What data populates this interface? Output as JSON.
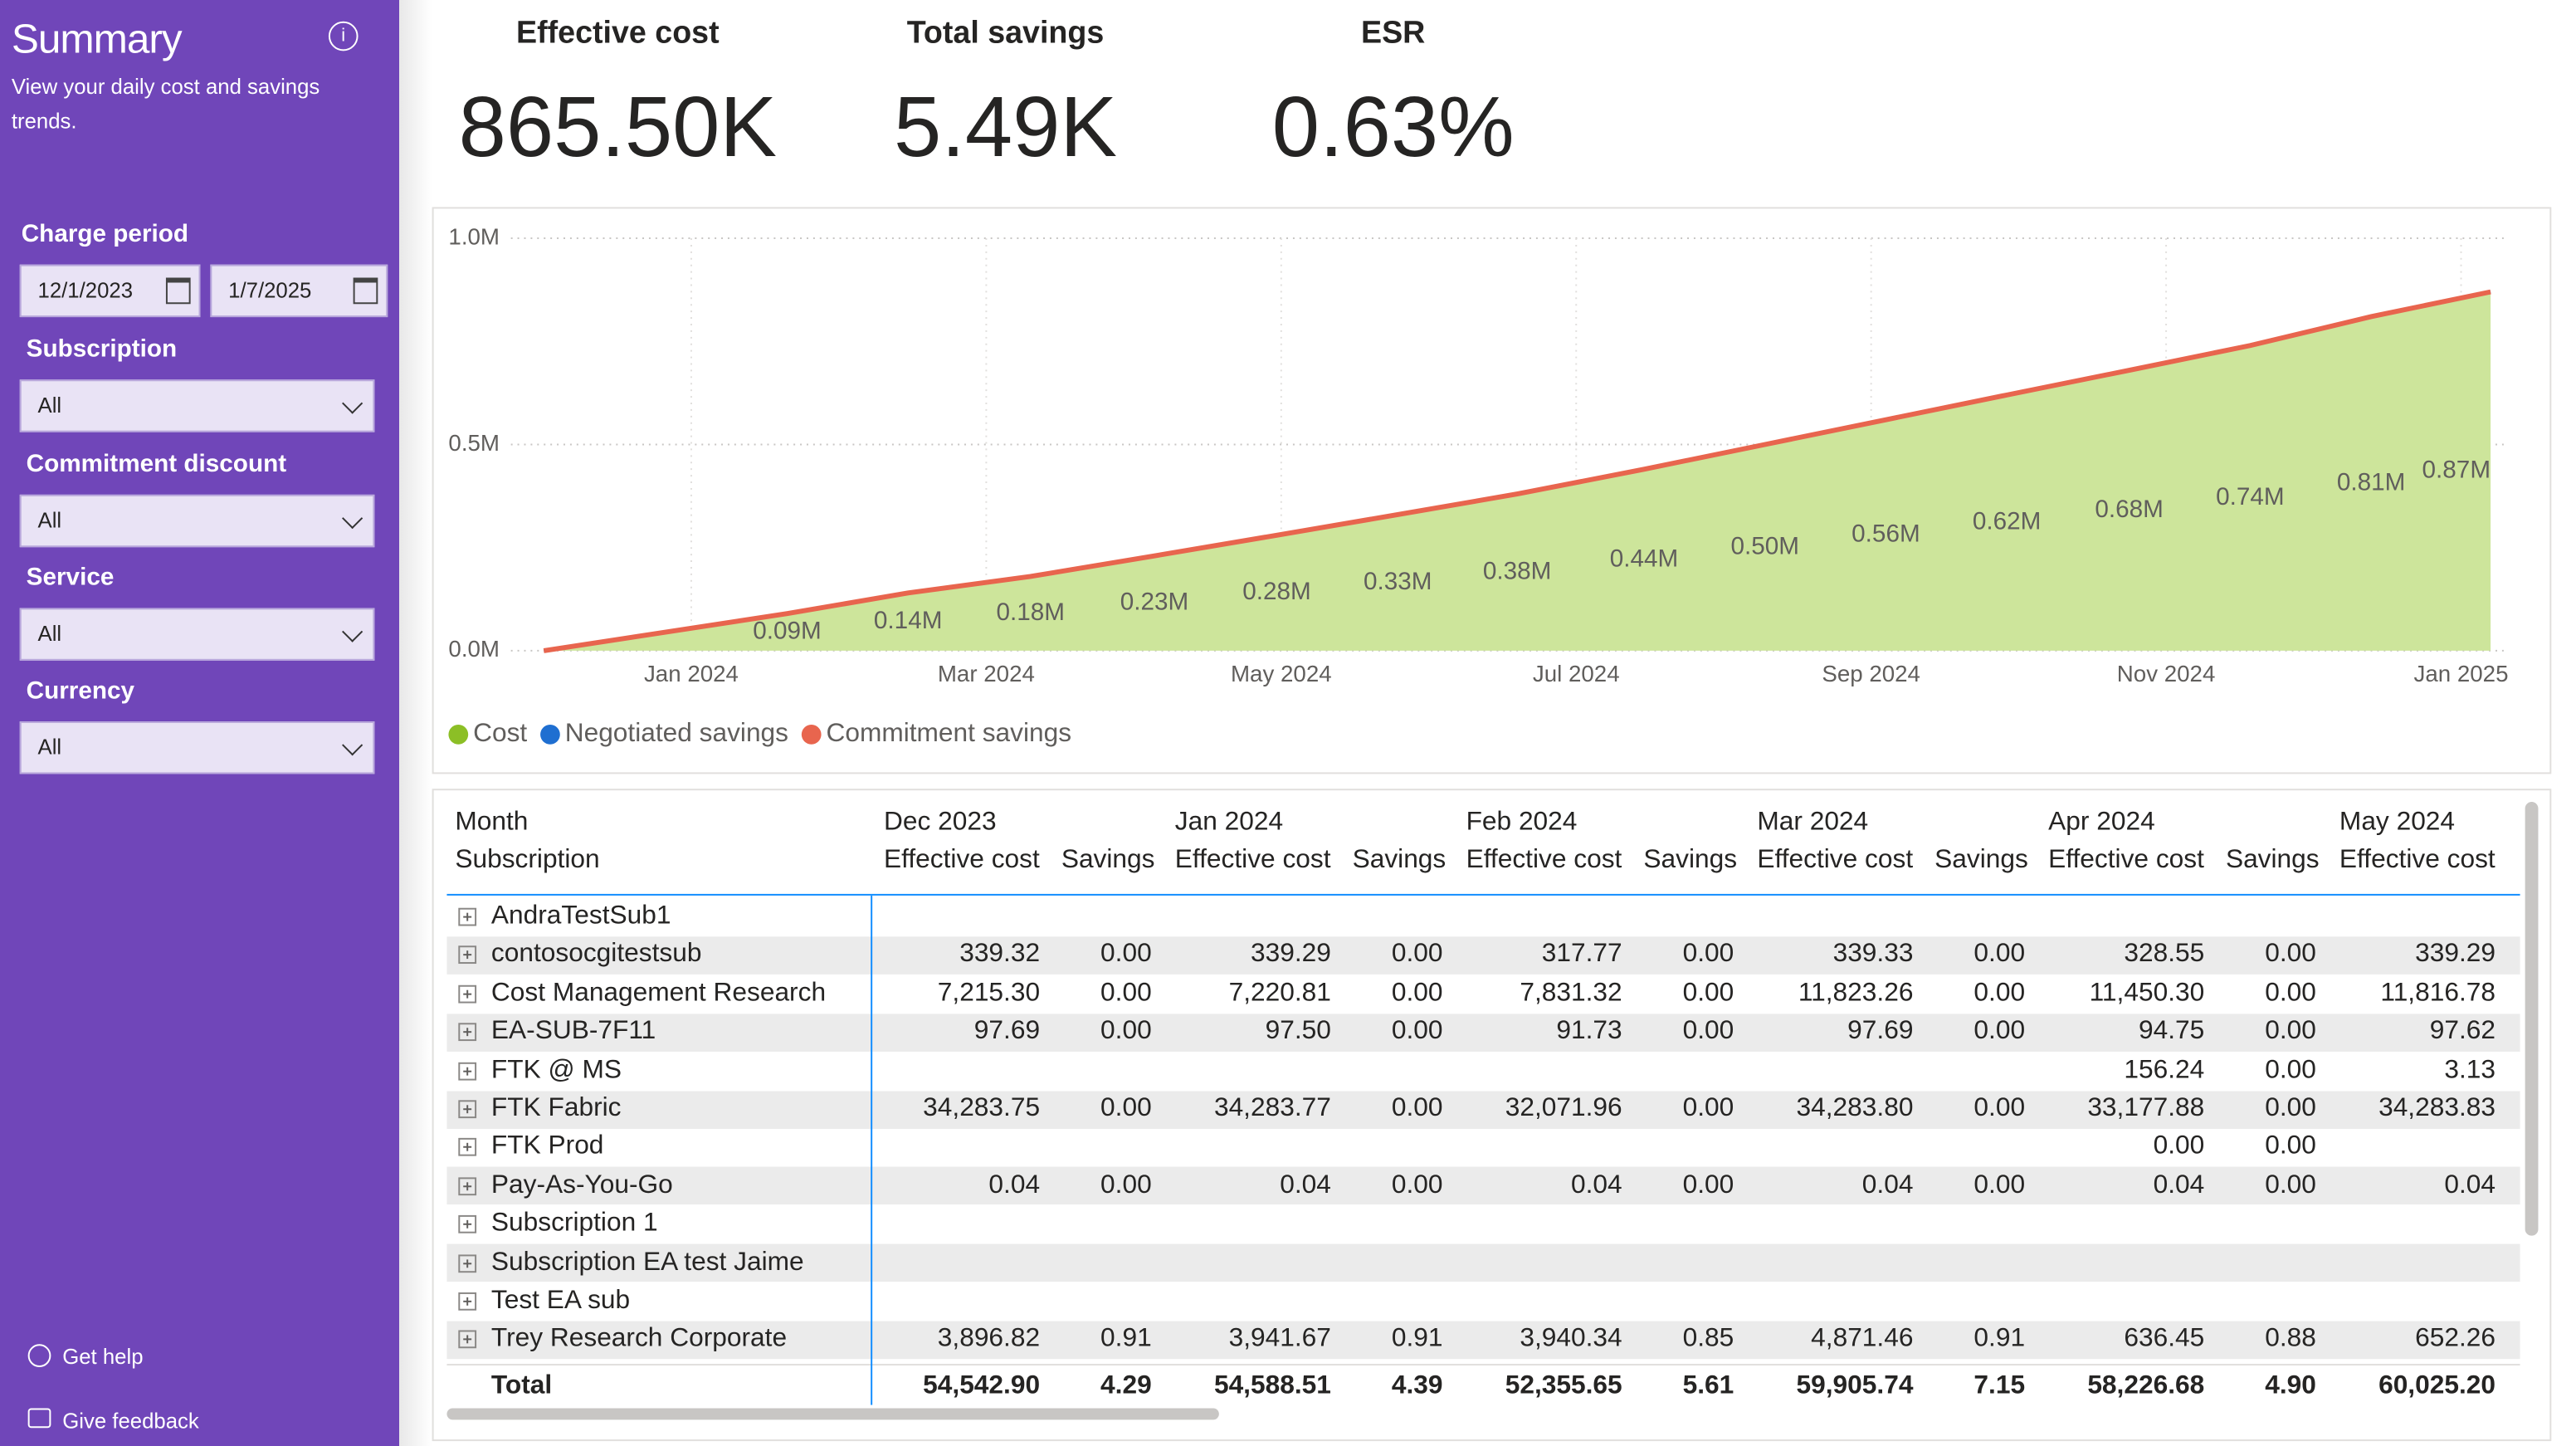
{
  "sidebar": {
    "title": "Summary",
    "subtitle": "View your daily cost and savings trends.",
    "filters": [
      {
        "label": "Charge period",
        "values": [
          "12/1/2023",
          "1/7/2025"
        ]
      },
      {
        "label": "Subscription",
        "value": "All"
      },
      {
        "label": "Commitment discount",
        "value": "All"
      },
      {
        "label": "Service",
        "value": "All"
      },
      {
        "label": "Currency",
        "value": "All"
      }
    ],
    "links": [
      "Get help",
      "Give feedback"
    ]
  },
  "kpis": [
    {
      "label": "Effective cost",
      "value": "865.50K"
    },
    {
      "label": "Total savings",
      "value": "5.49K"
    },
    {
      "label": "ESR",
      "value": "0.63%"
    }
  ],
  "chart_data": {
    "type": "area",
    "x": [
      0,
      1.65,
      2.47,
      3.3,
      4.14,
      4.97,
      5.79,
      6.6,
      7.46,
      8.28,
      9.1,
      9.92,
      10.75,
      11.57,
      12.39,
      13.2
    ],
    "xlim": [
      0,
      13.2
    ],
    "xticks": [
      {
        "value": 1,
        "label": "Jan 2024"
      },
      {
        "value": 3,
        "label": "Mar 2024"
      },
      {
        "value": 5,
        "label": "May 2024"
      },
      {
        "value": 7,
        "label": "Jul 2024"
      },
      {
        "value": 9,
        "label": "Sep 2024"
      },
      {
        "value": 11,
        "label": "Nov 2024"
      },
      {
        "value": 13,
        "label": "Jan 2025"
      }
    ],
    "ylim": [
      0,
      1000000
    ],
    "yticks": [
      {
        "value": 0,
        "label": "0.0M"
      },
      {
        "value": 500000,
        "label": "0.5M"
      },
      {
        "value": 1000000,
        "label": "1.0M"
      }
    ],
    "grid": true,
    "legend": "bottom-left",
    "series": [
      {
        "name": "Cost",
        "color": "#8cbf26",
        "fill": "#cde59b",
        "values": [
          0,
          90000,
          140000,
          180000,
          230000,
          280000,
          330000,
          380000,
          440000,
          500000,
          560000,
          620000,
          680000,
          740000,
          810000,
          870000
        ],
        "value_labels": [
          null,
          "0.09M",
          "0.14M",
          "0.18M",
          "0.23M",
          "0.28M",
          "0.33M",
          "0.38M",
          "0.44M",
          "0.50M",
          "0.56M",
          "0.62M",
          "0.68M",
          "0.74M",
          "0.81M",
          "0.87M"
        ]
      },
      {
        "name": "Negotiated savings",
        "color": "#1f6fd1",
        "values": [
          0,
          0,
          0,
          0,
          0,
          0,
          0,
          0,
          0,
          0,
          0,
          0,
          0,
          0,
          0,
          0
        ]
      },
      {
        "name": "Commitment savings",
        "color": "#e8654e",
        "values": [
          0,
          0,
          0,
          0,
          0,
          0,
          0,
          0,
          0,
          0,
          0,
          0,
          0,
          0,
          0,
          0
        ]
      }
    ]
  },
  "table": {
    "column_header": "Month",
    "row_header": "Subscription",
    "months": [
      {
        "name": "Dec 2023",
        "columns": [
          "Effective cost",
          "Savings"
        ]
      },
      {
        "name": "Jan 2024",
        "columns": [
          "Effective cost",
          "Savings"
        ]
      },
      {
        "name": "Feb 2024",
        "columns": [
          "Effective cost",
          "Savings"
        ]
      },
      {
        "name": "Mar 2024",
        "columns": [
          "Effective cost",
          "Savings"
        ]
      },
      {
        "name": "Apr 2024",
        "columns": [
          "Effective cost",
          "Savings"
        ]
      },
      {
        "name": "May 2024",
        "columns": [
          "Effective cost"
        ]
      }
    ],
    "rows": [
      {
        "name": "AndraTestSub1",
        "cells": [
          null,
          null,
          null,
          null,
          null,
          null,
          null,
          null,
          null,
          null,
          null
        ]
      },
      {
        "name": "contosocgitestsub",
        "cells": [
          "339.32",
          "0.00",
          "339.29",
          "0.00",
          "317.77",
          "0.00",
          "339.33",
          "0.00",
          "328.55",
          "0.00",
          "339.29"
        ]
      },
      {
        "name": "Cost Management Research",
        "cells": [
          "7,215.30",
          "0.00",
          "7,220.81",
          "0.00",
          "7,831.32",
          "0.00",
          "11,823.26",
          "0.00",
          "11,450.30",
          "0.00",
          "11,816.78"
        ]
      },
      {
        "name": "EA-SUB-7F11",
        "cells": [
          "97.69",
          "0.00",
          "97.50",
          "0.00",
          "91.73",
          "0.00",
          "97.69",
          "0.00",
          "94.75",
          "0.00",
          "97.62"
        ]
      },
      {
        "name": "FTK @ MS",
        "cells": [
          null,
          null,
          null,
          null,
          null,
          null,
          null,
          null,
          "156.24",
          "0.00",
          "3.13"
        ]
      },
      {
        "name": "FTK Fabric",
        "cells": [
          "34,283.75",
          "0.00",
          "34,283.77",
          "0.00",
          "32,071.96",
          "0.00",
          "34,283.80",
          "0.00",
          "33,177.88",
          "0.00",
          "34,283.83"
        ]
      },
      {
        "name": "FTK Prod",
        "cells": [
          null,
          null,
          null,
          null,
          null,
          null,
          null,
          null,
          "0.00",
          "0.00",
          null
        ]
      },
      {
        "name": "Pay-As-You-Go",
        "cells": [
          "0.04",
          "0.00",
          "0.04",
          "0.00",
          "0.04",
          "0.00",
          "0.04",
          "0.00",
          "0.04",
          "0.00",
          "0.04"
        ]
      },
      {
        "name": "Subscription 1",
        "cells": [
          null,
          null,
          null,
          null,
          null,
          null,
          null,
          null,
          null,
          null,
          null
        ]
      },
      {
        "name": "Subscription EA test Jaime",
        "cells": [
          null,
          null,
          null,
          null,
          null,
          null,
          null,
          null,
          null,
          null,
          null
        ]
      },
      {
        "name": "Test EA sub",
        "cells": [
          null,
          null,
          null,
          null,
          null,
          null,
          null,
          null,
          null,
          null,
          null
        ]
      },
      {
        "name": "Trey Research Corporate",
        "cells": [
          "3,896.82",
          "0.91",
          "3,941.67",
          "0.91",
          "3,940.34",
          "0.85",
          "4,871.46",
          "0.91",
          "636.45",
          "0.88",
          "652.26"
        ]
      }
    ],
    "total": {
      "name": "Total",
      "cells": [
        "54,542.90",
        "4.29",
        "54,588.51",
        "4.39",
        "52,355.65",
        "5.61",
        "59,905.74",
        "7.15",
        "58,226.68",
        "4.90",
        "60,025.20"
      ]
    }
  }
}
